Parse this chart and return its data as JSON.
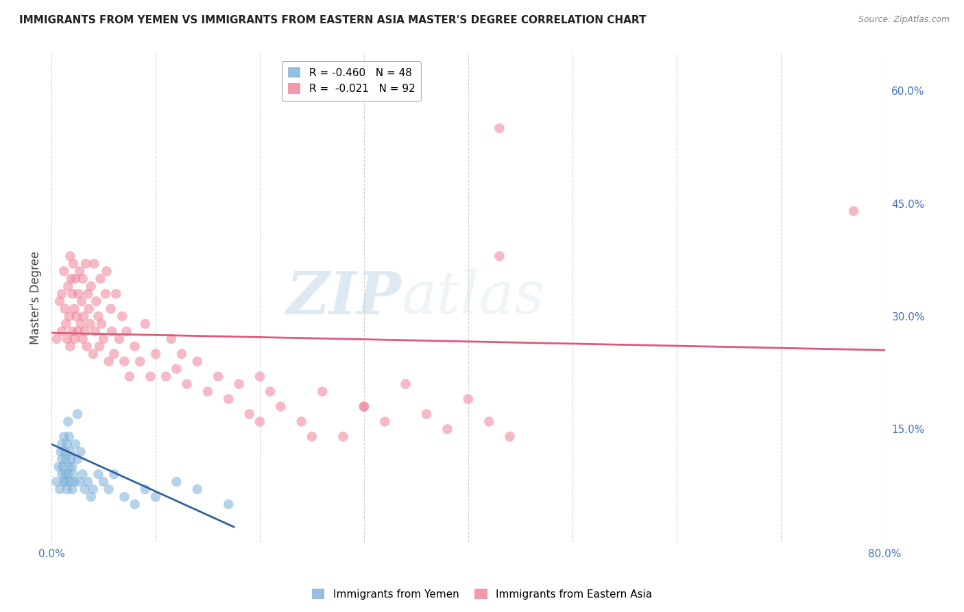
{
  "title": "IMMIGRANTS FROM YEMEN VS IMMIGRANTS FROM EASTERN ASIA MASTER'S DEGREE CORRELATION CHART",
  "source": "Source: ZipAtlas.com",
  "ylabel": "Master's Degree",
  "xlim": [
    0.0,
    0.8
  ],
  "ylim": [
    0.0,
    0.65
  ],
  "yticks_right": [
    0.15,
    0.3,
    0.45,
    0.6
  ],
  "ytick_labels_right": [
    "15.0%",
    "30.0%",
    "45.0%",
    "60.0%"
  ],
  "watermark_zip": "ZIP",
  "watermark_atlas": "atlas",
  "legend_line1": "R = -0.460   N = 48",
  "legend_line2": "R =  -0.021   N = 92",
  "legend_label1": "Immigrants from Yemen",
  "legend_label2": "Immigrants from Eastern Asia",
  "blue_scatter_x": [
    0.005,
    0.007,
    0.008,
    0.009,
    0.01,
    0.01,
    0.01,
    0.011,
    0.012,
    0.012,
    0.013,
    0.013,
    0.014,
    0.014,
    0.015,
    0.015,
    0.016,
    0.016,
    0.017,
    0.017,
    0.018,
    0.018,
    0.019,
    0.02,
    0.02,
    0.021,
    0.022,
    0.023,
    0.025,
    0.025,
    0.027,
    0.028,
    0.03,
    0.032,
    0.035,
    0.038,
    0.04,
    0.045,
    0.05,
    0.055,
    0.06,
    0.07,
    0.08,
    0.09,
    0.1,
    0.12,
    0.14,
    0.17
  ],
  "blue_scatter_y": [
    0.08,
    0.1,
    0.07,
    0.12,
    0.09,
    0.11,
    0.13,
    0.1,
    0.08,
    0.14,
    0.09,
    0.12,
    0.08,
    0.11,
    0.07,
    0.13,
    0.09,
    0.16,
    0.1,
    0.14,
    0.08,
    0.12,
    0.11,
    0.07,
    0.1,
    0.09,
    0.08,
    0.13,
    0.11,
    0.17,
    0.08,
    0.12,
    0.09,
    0.07,
    0.08,
    0.06,
    0.07,
    0.09,
    0.08,
    0.07,
    0.09,
    0.06,
    0.05,
    0.07,
    0.06,
    0.08,
    0.07,
    0.05
  ],
  "pink_scatter_x": [
    0.005,
    0.008,
    0.01,
    0.01,
    0.012,
    0.013,
    0.014,
    0.015,
    0.016,
    0.017,
    0.018,
    0.018,
    0.019,
    0.02,
    0.02,
    0.021,
    0.022,
    0.022,
    0.023,
    0.024,
    0.025,
    0.026,
    0.027,
    0.028,
    0.029,
    0.03,
    0.03,
    0.031,
    0.032,
    0.033,
    0.034,
    0.035,
    0.036,
    0.037,
    0.038,
    0.04,
    0.041,
    0.042,
    0.043,
    0.045,
    0.046,
    0.047,
    0.048,
    0.05,
    0.052,
    0.053,
    0.055,
    0.057,
    0.058,
    0.06,
    0.062,
    0.065,
    0.068,
    0.07,
    0.072,
    0.075,
    0.08,
    0.085,
    0.09,
    0.095,
    0.1,
    0.11,
    0.115,
    0.12,
    0.125,
    0.13,
    0.14,
    0.15,
    0.16,
    0.17,
    0.18,
    0.19,
    0.2,
    0.21,
    0.22,
    0.24,
    0.26,
    0.28,
    0.3,
    0.32,
    0.34,
    0.36,
    0.38,
    0.4,
    0.42,
    0.44,
    0.43,
    0.77,
    0.43,
    0.2,
    0.25,
    0.3
  ],
  "pink_scatter_y": [
    0.27,
    0.32,
    0.28,
    0.33,
    0.36,
    0.31,
    0.29,
    0.27,
    0.34,
    0.3,
    0.38,
    0.26,
    0.35,
    0.28,
    0.33,
    0.37,
    0.31,
    0.27,
    0.35,
    0.3,
    0.28,
    0.33,
    0.36,
    0.29,
    0.32,
    0.27,
    0.35,
    0.3,
    0.28,
    0.37,
    0.26,
    0.33,
    0.31,
    0.29,
    0.34,
    0.25,
    0.37,
    0.28,
    0.32,
    0.3,
    0.26,
    0.35,
    0.29,
    0.27,
    0.33,
    0.36,
    0.24,
    0.31,
    0.28,
    0.25,
    0.33,
    0.27,
    0.3,
    0.24,
    0.28,
    0.22,
    0.26,
    0.24,
    0.29,
    0.22,
    0.25,
    0.22,
    0.27,
    0.23,
    0.25,
    0.21,
    0.24,
    0.2,
    0.22,
    0.19,
    0.21,
    0.17,
    0.22,
    0.2,
    0.18,
    0.16,
    0.2,
    0.14,
    0.18,
    0.16,
    0.21,
    0.17,
    0.15,
    0.19,
    0.16,
    0.14,
    0.55,
    0.44,
    0.38,
    0.16,
    0.14,
    0.18
  ],
  "blue_line_x": [
    0.0,
    0.175
  ],
  "blue_line_y": [
    0.13,
    0.02
  ],
  "pink_line_x": [
    0.0,
    0.8
  ],
  "pink_line_y": [
    0.278,
    0.255
  ],
  "scatter_size": 110,
  "scatter_alpha": 0.55,
  "blue_color": "#7ab0d8",
  "pink_color": "#f08098",
  "blue_line_color": "#3060a0",
  "pink_line_color": "#e05878",
  "grid_color": "#cccccc",
  "tick_label_color": "#4472c4"
}
